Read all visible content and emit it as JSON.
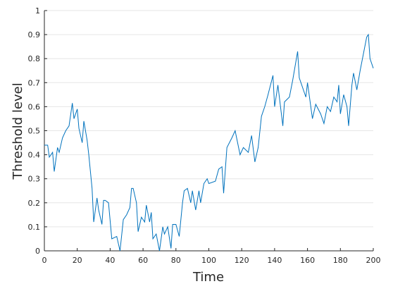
{
  "chart_data": {
    "type": "line",
    "xlabel": "Time",
    "ylabel": "Threshold level",
    "x": [
      0,
      2,
      3,
      5,
      6,
      8,
      9,
      11,
      13,
      15,
      17,
      18,
      20,
      21,
      23,
      24,
      26,
      27,
      29,
      30,
      32,
      33,
      35,
      36,
      37,
      39,
      41,
      44,
      46,
      48,
      50,
      52,
      53,
      54,
      56,
      57,
      59,
      61,
      62,
      64,
      65,
      66,
      68,
      70,
      72,
      73,
      75,
      77,
      78,
      80,
      82,
      84,
      85,
      87,
      89,
      90,
      92,
      94,
      95,
      97,
      99,
      100,
      104,
      106,
      108,
      109,
      111,
      114,
      116,
      119,
      121,
      124,
      126,
      128,
      130,
      132,
      134,
      136,
      139,
      140,
      142,
      145,
      146,
      149,
      151,
      154,
      155,
      159,
      160,
      163,
      165,
      168,
      170,
      172,
      174,
      176,
      178,
      179,
      180,
      182,
      184,
      185,
      187,
      188,
      190,
      192,
      194,
      196,
      197,
      198,
      200
    ],
    "series": [
      {
        "color": "#0072bd",
        "values": [
          0.44,
          0.44,
          0.39,
          0.41,
          0.33,
          0.43,
          0.41,
          0.47,
          0.5,
          0.52,
          0.615,
          0.55,
          0.59,
          0.51,
          0.45,
          0.54,
          0.46,
          0.4,
          0.26,
          0.12,
          0.22,
          0.17,
          0.11,
          0.21,
          0.21,
          0.2,
          0.05,
          0.06,
          0.0,
          0.13,
          0.15,
          0.18,
          0.26,
          0.26,
          0.2,
          0.08,
          0.14,
          0.12,
          0.19,
          0.12,
          0.16,
          0.05,
          0.07,
          0.0,
          0.1,
          0.07,
          0.1,
          0.01,
          0.11,
          0.11,
          0.06,
          0.2,
          0.25,
          0.26,
          0.2,
          0.25,
          0.17,
          0.25,
          0.2,
          0.28,
          0.3,
          0.28,
          0.29,
          0.34,
          0.35,
          0.24,
          0.43,
          0.47,
          0.5,
          0.4,
          0.43,
          0.41,
          0.48,
          0.37,
          0.43,
          0.56,
          0.6,
          0.65,
          0.73,
          0.6,
          0.69,
          0.52,
          0.62,
          0.64,
          0.71,
          0.83,
          0.72,
          0.64,
          0.7,
          0.55,
          0.61,
          0.57,
          0.53,
          0.6,
          0.58,
          0.64,
          0.62,
          0.69,
          0.57,
          0.65,
          0.6,
          0.52,
          0.69,
          0.74,
          0.67,
          0.75,
          0.82,
          0.89,
          0.9,
          0.8,
          0.76
        ]
      }
    ],
    "xlim": [
      0,
      200
    ],
    "xticks": [
      0,
      20,
      40,
      60,
      80,
      100,
      120,
      140,
      160,
      180,
      200
    ],
    "ylim": [
      0,
      1
    ],
    "yticks": [
      0,
      0.1,
      0.2,
      0.3,
      0.4,
      0.5,
      0.6,
      0.7,
      0.8,
      0.9,
      1
    ],
    "grid": "y"
  }
}
